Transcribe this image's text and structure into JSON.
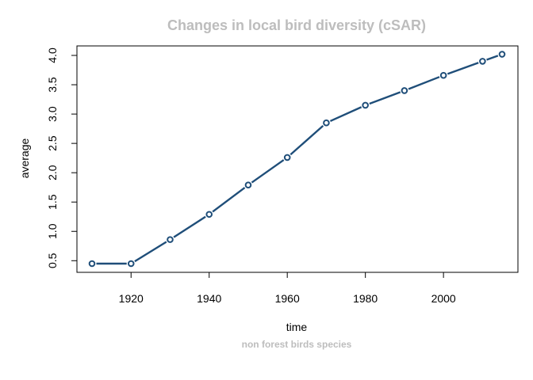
{
  "chart_data": {
    "type": "line",
    "title": "Changes in local bird diversity (cSAR)",
    "subtitle": "non forest birds species",
    "xlabel": "time",
    "ylabel": "average",
    "xlim": [
      1910,
      2015
    ],
    "ylim": [
      0.45,
      4.0
    ],
    "x_ticks": [
      1920,
      1940,
      1960,
      1980,
      2000
    ],
    "y_ticks": [
      0.5,
      1.0,
      1.5,
      2.0,
      2.5,
      3.0,
      3.5,
      4.0
    ],
    "x_tick_labels": [
      "1920",
      "1940",
      "1960",
      "1980",
      "2000"
    ],
    "y_tick_labels": [
      "0.5",
      "1.0",
      "1.5",
      "2.0",
      "2.5",
      "3.0",
      "3.5",
      "4.0"
    ],
    "grid": false,
    "series": [
      {
        "color": "#1f4e79",
        "marker": "open-circle",
        "x": [
          1910,
          1920,
          1930,
          1940,
          1950,
          1960,
          1970,
          1980,
          1990,
          2000,
          2010,
          2015
        ],
        "values": [
          0.45,
          0.45,
          0.86,
          1.29,
          1.79,
          2.26,
          2.85,
          3.15,
          3.4,
          3.66,
          3.9,
          4.02
        ]
      }
    ]
  }
}
